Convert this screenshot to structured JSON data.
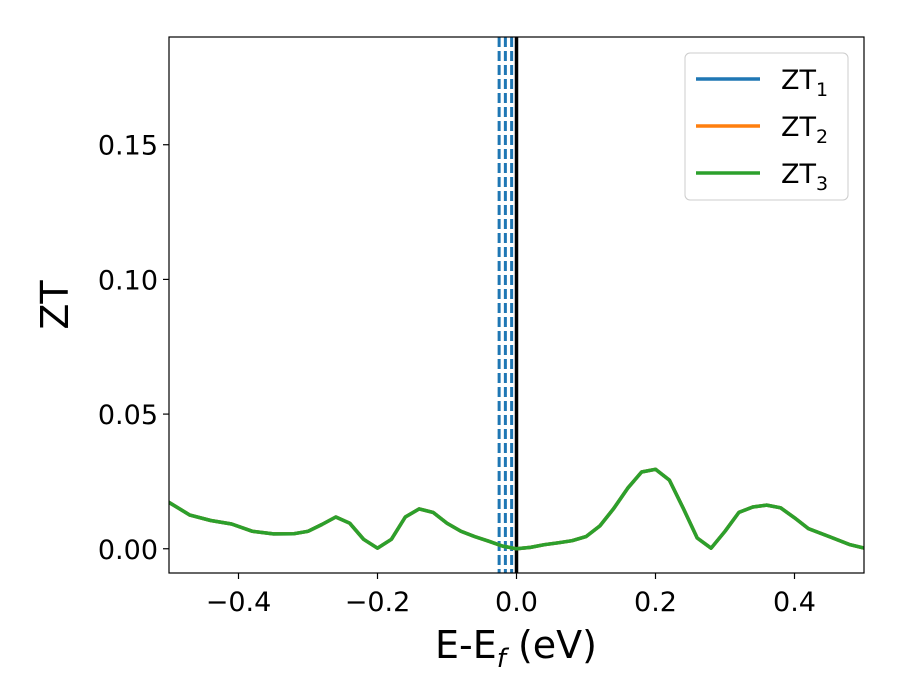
{
  "chart_data": {
    "type": "line",
    "title": "",
    "xlabel": {
      "main": "E-E",
      "sub": "f",
      "unit": " (eV)"
    },
    "ylabel": "ZT",
    "xlim": [
      -0.5,
      0.5
    ],
    "ylim": [
      -0.009,
      0.19
    ],
    "x_ticks": [
      -0.4,
      -0.2,
      0.0,
      0.2,
      0.4
    ],
    "x_tick_labels": [
      "−0.4",
      "−0.2",
      "0.0",
      "0.2",
      "0.4"
    ],
    "y_ticks": [
      0.0,
      0.05,
      0.1,
      0.15
    ],
    "y_tick_labels": [
      "0.00",
      "0.05",
      "0.10",
      "0.15"
    ],
    "grid": false,
    "legend_position": "top-right",
    "x": [
      -0.5,
      -0.47,
      -0.44,
      -0.41,
      -0.38,
      -0.35,
      -0.32,
      -0.3,
      -0.28,
      -0.26,
      -0.24,
      -0.22,
      -0.2,
      -0.18,
      -0.16,
      -0.14,
      -0.12,
      -0.1,
      -0.08,
      -0.06,
      -0.04,
      -0.02,
      0.0,
      0.02,
      0.04,
      0.06,
      0.08,
      0.1,
      0.12,
      0.14,
      0.16,
      0.18,
      0.2,
      0.22,
      0.24,
      0.26,
      0.28,
      0.3,
      0.32,
      0.34,
      0.36,
      0.38,
      0.4,
      0.42,
      0.45,
      0.48,
      0.5
    ],
    "series": [
      {
        "label": "ZT",
        "sub": "1",
        "color": "#1f77b4",
        "values": [
          0.0172,
          0.0125,
          0.0105,
          0.0092,
          0.0065,
          0.0055,
          0.0056,
          0.0065,
          0.009,
          0.0118,
          0.0095,
          0.0035,
          0.0002,
          0.0035,
          0.0118,
          0.0148,
          0.0135,
          0.0095,
          0.0065,
          0.0045,
          0.0028,
          0.001,
          0.0,
          0.0005,
          0.0015,
          0.0022,
          0.003,
          0.0045,
          0.0085,
          0.015,
          0.0225,
          0.0285,
          0.0295,
          0.0255,
          0.015,
          0.004,
          0.0002,
          0.0065,
          0.0135,
          0.0155,
          0.0162,
          0.0152,
          0.0115,
          0.0075,
          0.0045,
          0.0015,
          0.0003
        ]
      },
      {
        "label": "ZT",
        "sub": "2",
        "color": "#ff7f0e",
        "values": [
          0.0172,
          0.0125,
          0.0105,
          0.0092,
          0.0065,
          0.0055,
          0.0056,
          0.0065,
          0.009,
          0.0118,
          0.0095,
          0.0035,
          0.0002,
          0.0035,
          0.0118,
          0.0148,
          0.0135,
          0.0095,
          0.0065,
          0.0045,
          0.0028,
          0.001,
          0.0,
          0.0005,
          0.0015,
          0.0022,
          0.003,
          0.0045,
          0.0085,
          0.015,
          0.0225,
          0.0285,
          0.0295,
          0.0255,
          0.015,
          0.004,
          0.0002,
          0.0065,
          0.0135,
          0.0155,
          0.0162,
          0.0152,
          0.0115,
          0.0075,
          0.0045,
          0.0015,
          0.0003
        ]
      },
      {
        "label": "ZT",
        "sub": "3",
        "color": "#2ca02c",
        "values": [
          0.0172,
          0.0125,
          0.0105,
          0.0092,
          0.0065,
          0.0055,
          0.0056,
          0.0065,
          0.009,
          0.0118,
          0.0095,
          0.0035,
          0.0002,
          0.0035,
          0.0118,
          0.0148,
          0.0135,
          0.0095,
          0.0065,
          0.0045,
          0.0028,
          0.001,
          0.0,
          0.0005,
          0.0015,
          0.0022,
          0.003,
          0.0045,
          0.0085,
          0.015,
          0.0225,
          0.0285,
          0.0295,
          0.0255,
          0.015,
          0.004,
          0.0002,
          0.0065,
          0.0135,
          0.0155,
          0.0162,
          0.0152,
          0.0115,
          0.0075,
          0.0045,
          0.0015,
          0.0003
        ]
      }
    ],
    "vertical_lines": [
      {
        "x": -0.025,
        "style": "dashed",
        "color": "#1f77b4"
      },
      {
        "x": -0.016,
        "style": "dashed",
        "color": "#1f77b4"
      },
      {
        "x": -0.007,
        "style": "dashed",
        "color": "#1f77b4"
      },
      {
        "x": 0.0,
        "style": "solid",
        "color": "#000000"
      }
    ]
  }
}
